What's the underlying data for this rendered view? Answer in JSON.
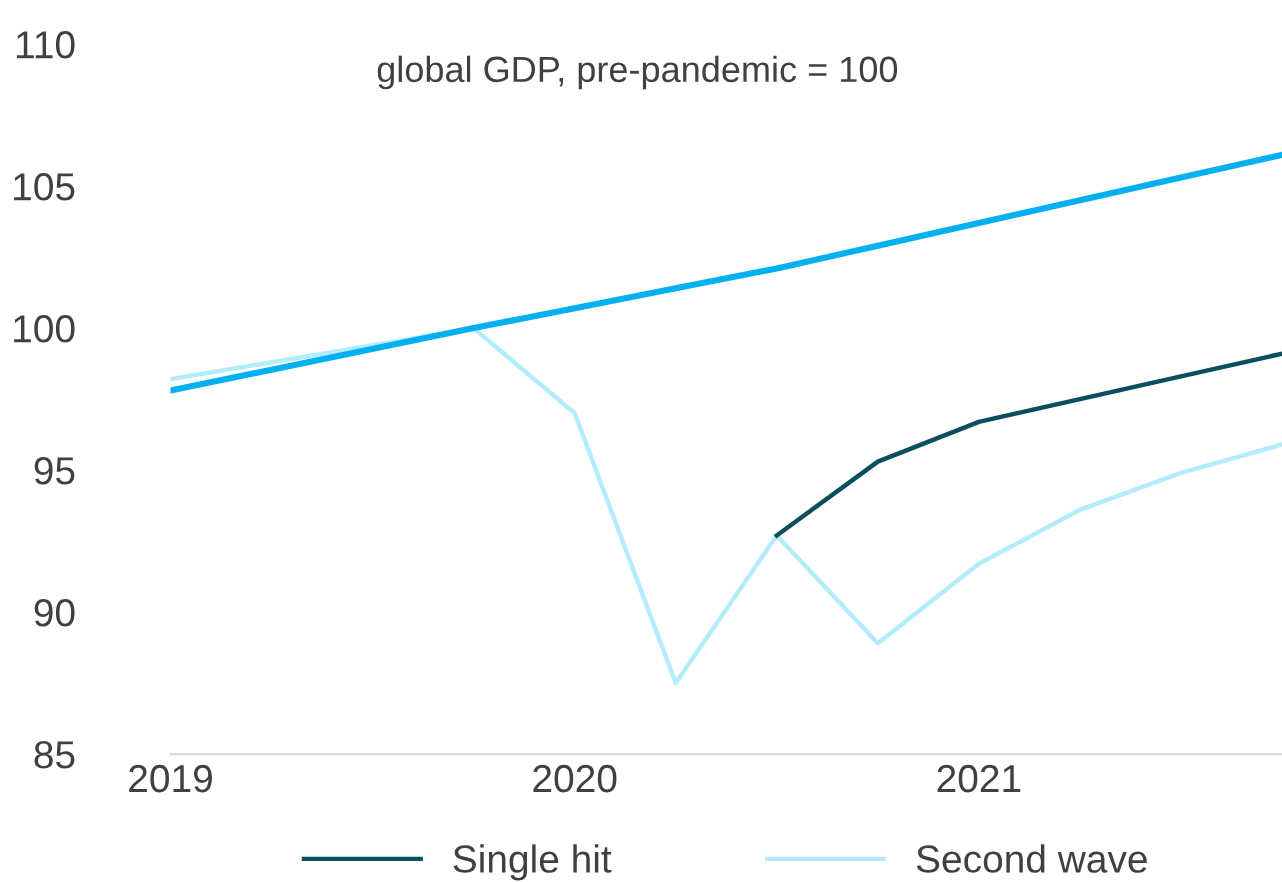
{
  "chart_data": {
    "type": "line",
    "title": "global GDP, pre-pandemic = 100",
    "xlim": [
      2019,
      2021.75
    ],
    "xticks": [
      2019,
      2020,
      2021
    ],
    "ylim": [
      85,
      110
    ],
    "yticks": [
      85,
      90,
      95,
      100,
      105,
      110
    ],
    "grid": false,
    "legend": "bottom",
    "marker": "none",
    "line_style": "solid",
    "series": [
      {
        "color": "#00b0f0",
        "x": [
          2019,
          2019.75,
          2020,
          2020.25,
          2020.5,
          2020.75,
          2021,
          2021.25,
          2021.5,
          2021.75
        ],
        "values": [
          97.8,
          100,
          100.7,
          101.4,
          102.1,
          102.9,
          103.7,
          104.5,
          105.3,
          106.1
        ]
      },
      {
        "name": "Single hit",
        "color": "#0b4f5f",
        "x": [
          2020.5,
          2020.75,
          2021,
          2021.25,
          2021.5,
          2021.75
        ],
        "values": [
          92.7,
          95.3,
          96.7,
          97.5,
          98.3,
          99.1
        ]
      },
      {
        "name": "Second wave",
        "color": "#b3ecfb",
        "x": [
          2019,
          2019.75,
          2020,
          2020.25,
          2020.5,
          2020.75,
          2021,
          2021.25,
          2021.5,
          2021.75
        ],
        "values": [
          98.2,
          100,
          97,
          87.5,
          92.7,
          88.9,
          91.7,
          93.6,
          94.9,
          95.9
        ]
      }
    ]
  }
}
